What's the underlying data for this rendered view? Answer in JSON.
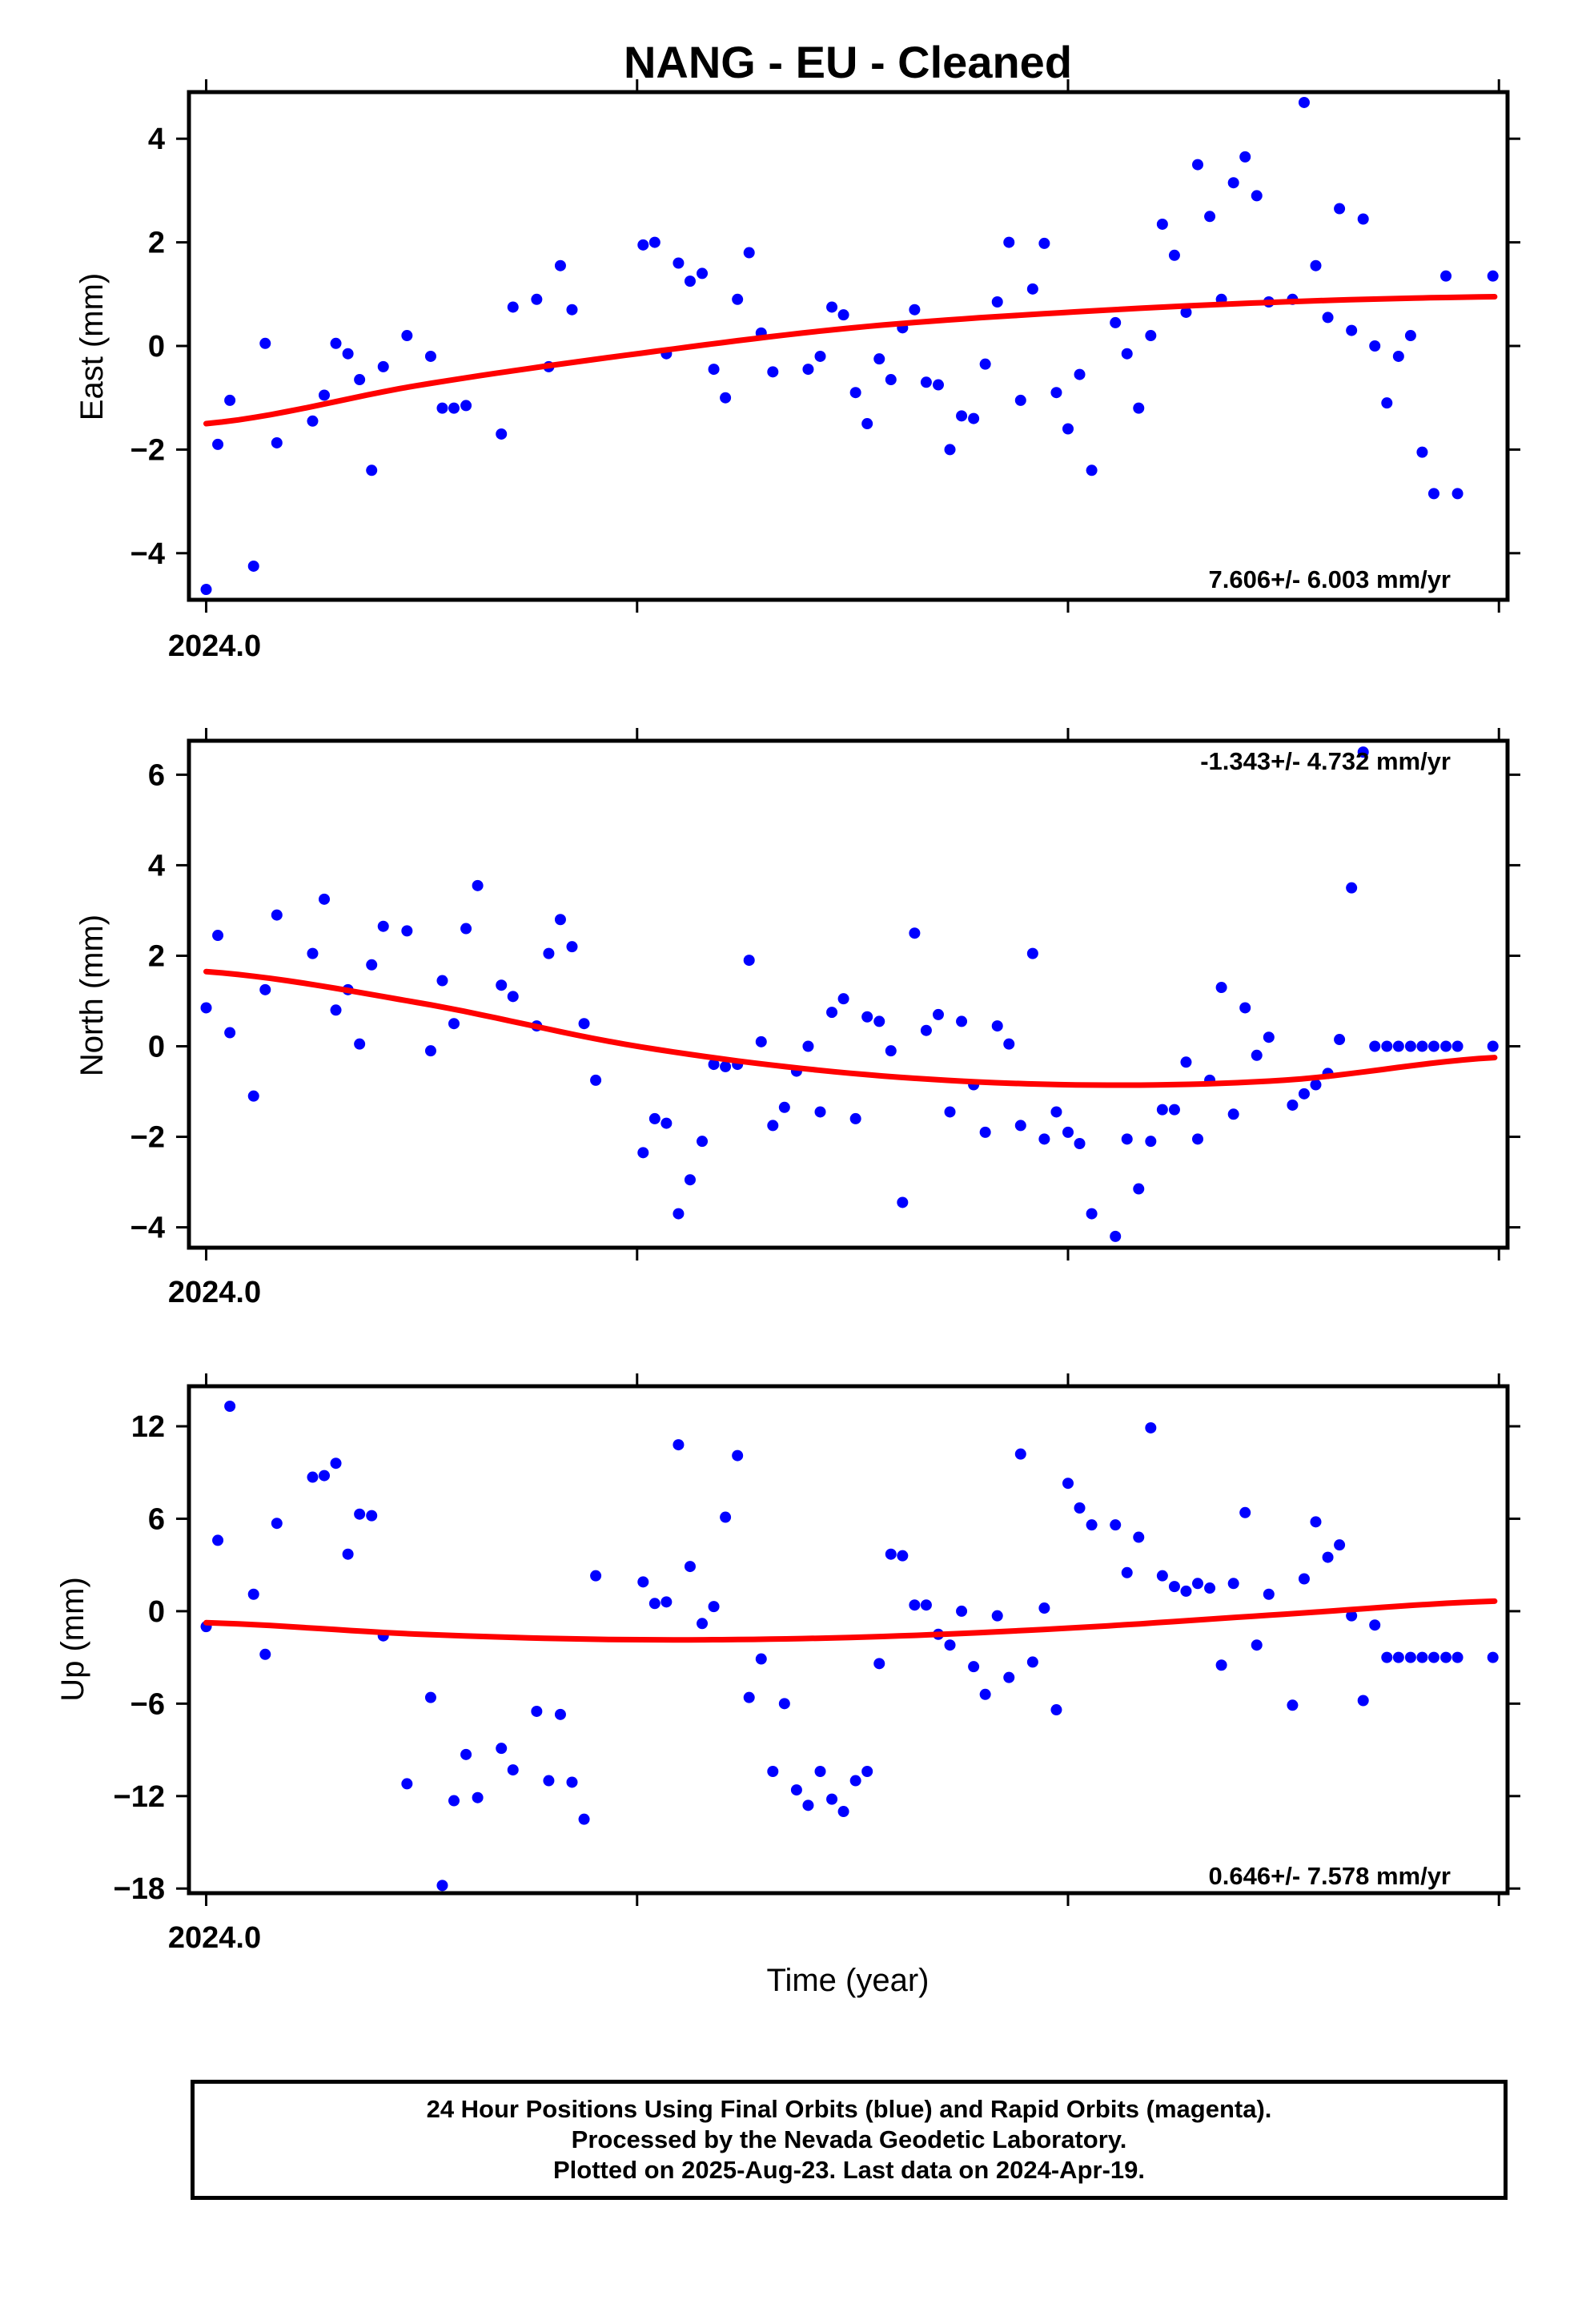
{
  "title": "NANG  - EU - Cleaned",
  "xlabel": "Time (year)",
  "x_tick_label": "2024.0",
  "footer": {
    "line1": "24 Hour Positions Using Final Orbits (blue) and Rapid Orbits (magenta).",
    "line2": "Processed by the Nevada Geodetic Laboratory.",
    "line3": "Plotted on 2025-Aug-23. Last data on 2024-Apr-19."
  },
  "colors": {
    "points": "#0000ff",
    "fit": "#ff0000",
    "axes": "#000000"
  },
  "chart_data": [
    {
      "type": "scatter",
      "ylabel": "East (mm)",
      "rate_label": "7.606+/- 6.003 mm/yr",
      "rate_position": "bottom-right",
      "xlim": [
        2023.996,
        2024.302
      ],
      "ylim": [
        -4.9,
        4.9
      ],
      "yticks": [
        -4,
        -2,
        0,
        2,
        4
      ],
      "y_tick_labels": [
        "−4",
        "−2",
        "0",
        "2",
        "4"
      ],
      "x_major_ticks": [
        2024.0,
        2024.1,
        2024.2,
        2024.3
      ],
      "x_tick_labels": [
        "2024.0",
        "",
        "",
        ""
      ],
      "x": [
        2024.0,
        2024.0027,
        2024.0055,
        2024.011,
        2024.0137,
        2024.0164,
        2024.0247,
        2024.0274,
        2024.0301,
        2024.0329,
        2024.0356,
        2024.0384,
        2024.0411,
        2024.0466,
        2024.0521,
        2024.0548,
        2024.0575,
        2024.0603,
        2024.0685,
        2024.0712,
        2024.0767,
        2024.0795,
        2024.0822,
        2024.0849,
        2024.1014,
        2024.1041,
        2024.1068,
        2024.1096,
        2024.1123,
        2024.1151,
        2024.1178,
        2024.1205,
        2024.1233,
        2024.126,
        2024.1288,
        2024.1315,
        2024.1397,
        2024.1425,
        2024.1452,
        2024.1479,
        2024.1507,
        2024.1534,
        2024.1562,
        2024.1589,
        2024.1616,
        2024.1644,
        2024.1671,
        2024.1699,
        2024.1726,
        2024.1753,
        2024.1781,
        2024.1808,
        2024.1836,
        2024.1863,
        2024.189,
        2024.1918,
        2024.1945,
        2024.1973,
        2024.2,
        2024.2027,
        2024.2055,
        2024.211,
        2024.2137,
        2024.2164,
        2024.2192,
        2024.2219,
        2024.2247,
        2024.2274,
        2024.2301,
        2024.2329,
        2024.2356,
        2024.2384,
        2024.2411,
        2024.2438,
        2024.2466,
        2024.2521,
        2024.2548,
        2024.2575,
        2024.2603,
        2024.263,
        2024.2658,
        2024.2685,
        2024.2712,
        2024.274,
        2024.2767,
        2024.2795,
        2024.2822,
        2024.2849,
        2024.2877,
        2024.2904,
        2024.2986
      ],
      "y": [
        -4.7,
        -1.9,
        -1.05,
        -4.25,
        0.05,
        -1.87,
        -1.45,
        -0.95,
        0.05,
        -0.15,
        -0.65,
        -2.4,
        -0.4,
        0.2,
        -0.2,
        -1.2,
        -1.2,
        -1.15,
        -1.7,
        0.75,
        0.9,
        -0.4,
        1.55,
        0.7,
        1.95,
        2.0,
        -0.15,
        1.6,
        1.25,
        1.4,
        -0.45,
        -1.0,
        0.9,
        1.8,
        0.25,
        -0.5,
        -0.45,
        -0.2,
        0.75,
        0.6,
        -0.9,
        -1.5,
        -0.25,
        -0.65,
        0.35,
        0.7,
        -0.7,
        -0.75,
        -2.0,
        -1.35,
        -1.4,
        -0.35,
        0.85,
        2.0,
        -1.05,
        1.1,
        1.98,
        -0.9,
        -1.6,
        -0.55,
        -2.4,
        0.45,
        -0.15,
        -1.2,
        0.2,
        2.35,
        1.75,
        0.65,
        3.5,
        2.5,
        0.9,
        3.15,
        3.65,
        2.9,
        0.85,
        0.9,
        4.7,
        1.55,
        0.55,
        2.65,
        0.3,
        2.45,
        0.0,
        -1.1,
        -0.2,
        0.2,
        -2.05,
        -2.85,
        1.35,
        -2.85,
        1.35
      ],
      "fit": {
        "x": [
          2024.0,
          2024.05,
          2024.1,
          2024.15,
          2024.2,
          2024.25,
          2024.299
        ],
        "y": [
          -1.5,
          -0.75,
          -0.15,
          0.35,
          0.65,
          0.85,
          0.95
        ]
      }
    },
    {
      "type": "scatter",
      "ylabel": "North (mm)",
      "rate_label": "-1.343+/- 4.732 mm/yr",
      "rate_position": "top-right",
      "xlim": [
        2023.996,
        2024.302
      ],
      "ylim": [
        -4.45,
        6.75
      ],
      "yticks": [
        -4,
        -2,
        0,
        2,
        4,
        6
      ],
      "y_tick_labels": [
        "−4",
        "−2",
        "0",
        "2",
        "4",
        "6"
      ],
      "x_major_ticks": [
        2024.0,
        2024.1,
        2024.2,
        2024.3
      ],
      "x_tick_labels": [
        "2024.0",
        "",
        "",
        ""
      ],
      "x": [
        2024.0,
        2024.0027,
        2024.0055,
        2024.011,
        2024.0137,
        2024.0164,
        2024.0247,
        2024.0274,
        2024.0301,
        2024.0329,
        2024.0356,
        2024.0384,
        2024.0411,
        2024.0466,
        2024.0521,
        2024.0548,
        2024.0575,
        2024.0603,
        2024.063,
        2024.0685,
        2024.0712,
        2024.0767,
        2024.0795,
        2024.0822,
        2024.0849,
        2024.0877,
        2024.0904,
        2024.1014,
        2024.1041,
        2024.1068,
        2024.1096,
        2024.1123,
        2024.1151,
        2024.1178,
        2024.1205,
        2024.1233,
        2024.126,
        2024.1288,
        2024.1315,
        2024.1342,
        2024.137,
        2024.1397,
        2024.1425,
        2024.1452,
        2024.1479,
        2024.1507,
        2024.1534,
        2024.1562,
        2024.1589,
        2024.1616,
        2024.1644,
        2024.1671,
        2024.1699,
        2024.1726,
        2024.1753,
        2024.1781,
        2024.1808,
        2024.1836,
        2024.1863,
        2024.189,
        2024.1918,
        2024.1945,
        2024.1973,
        2024.2,
        2024.2027,
        2024.2055,
        2024.211,
        2024.2137,
        2024.2164,
        2024.2192,
        2024.2219,
        2024.2247,
        2024.2274,
        2024.2301,
        2024.2329,
        2024.2356,
        2024.2384,
        2024.2411,
        2024.2438,
        2024.2466,
        2024.2521,
        2024.2548,
        2024.2575,
        2024.2603,
        2024.263,
        2024.2658,
        2024.2685,
        2024.2712,
        2024.274,
        2024.2767,
        2024.2795,
        2024.2822,
        2024.2849,
        2024.2877,
        2024.2904,
        2024.2986
      ],
      "y": [
        0.85,
        2.45,
        0.3,
        -1.1,
        1.25,
        2.9,
        2.05,
        3.25,
        0.8,
        1.25,
        0.05,
        1.8,
        2.65,
        2.55,
        -0.1,
        1.45,
        0.5,
        2.6,
        3.55,
        1.35,
        1.1,
        0.45,
        2.05,
        2.8,
        2.2,
        0.5,
        -0.75,
        -2.35,
        -1.6,
        -1.7,
        -3.7,
        -2.95,
        -2.1,
        -0.4,
        -0.45,
        -0.4,
        1.9,
        0.1,
        -1.75,
        -1.35,
        -0.55,
        0.0,
        -1.45,
        0.75,
        1.05,
        -1.6,
        0.65,
        0.55,
        -0.1,
        -3.45,
        2.5,
        0.35,
        0.7,
        -1.45,
        0.55,
        -0.85,
        -1.9,
        0.45,
        0.05,
        -1.75,
        2.05,
        -2.05,
        -1.45,
        -1.9,
        -2.15,
        -3.7,
        -4.2,
        -2.05,
        -3.15,
        -2.1,
        -1.4,
        -1.4,
        -0.35,
        -2.05,
        -0.75,
        1.3,
        -1.5,
        0.85,
        -0.2,
        0.2,
        -1.3,
        -1.05,
        -0.85,
        -0.6,
        0.15,
        3.5,
        6.5,
        0.0,
        0.0,
        0.0,
        0.0,
        0.0,
        0.0,
        0.0,
        0.0,
        0.0
      ],
      "fit": {
        "x": [
          2024.0,
          2024.05,
          2024.1,
          2024.15,
          2024.2,
          2024.25,
          2024.299
        ],
        "y": [
          1.65,
          0.95,
          0.0,
          -0.6,
          -0.85,
          -0.75,
          -0.25
        ]
      }
    },
    {
      "type": "scatter",
      "ylabel": "Up (mm)",
      "rate_label": "0.646+/- 7.578 mm/yr",
      "rate_position": "bottom-right",
      "xlim": [
        2023.996,
        2024.302
      ],
      "ylim": [
        -18.3,
        14.6
      ],
      "yticks": [
        -18,
        -12,
        -6,
        0,
        6,
        12
      ],
      "y_tick_labels": [
        "−18",
        "−12",
        "−6",
        "0",
        "6",
        "12"
      ],
      "x_major_ticks": [
        2024.0,
        2024.1,
        2024.2,
        2024.3
      ],
      "x_tick_labels": [
        "2024.0",
        "",
        "",
        ""
      ],
      "x": [
        2024.0,
        2024.0027,
        2024.0055,
        2024.011,
        2024.0137,
        2024.0164,
        2024.0247,
        2024.0274,
        2024.0301,
        2024.0329,
        2024.0356,
        2024.0384,
        2024.0411,
        2024.0466,
        2024.0521,
        2024.0548,
        2024.0575,
        2024.0603,
        2024.063,
        2024.0685,
        2024.0712,
        2024.0767,
        2024.0795,
        2024.0822,
        2024.0849,
        2024.0877,
        2024.0904,
        2024.1014,
        2024.1041,
        2024.1068,
        2024.1096,
        2024.1123,
        2024.1151,
        2024.1178,
        2024.1205,
        2024.1233,
        2024.126,
        2024.1288,
        2024.1315,
        2024.1342,
        2024.137,
        2024.1397,
        2024.1425,
        2024.1452,
        2024.1479,
        2024.1507,
        2024.1534,
        2024.1562,
        2024.1589,
        2024.1616,
        2024.1644,
        2024.1671,
        2024.1699,
        2024.1726,
        2024.1753,
        2024.1781,
        2024.1808,
        2024.1836,
        2024.1863,
        2024.189,
        2024.1918,
        2024.1945,
        2024.1973,
        2024.2,
        2024.2027,
        2024.2055,
        2024.211,
        2024.2137,
        2024.2164,
        2024.2192,
        2024.2219,
        2024.2247,
        2024.2274,
        2024.2301,
        2024.2329,
        2024.2356,
        2024.2384,
        2024.2411,
        2024.2438,
        2024.2466,
        2024.2521,
        2024.2548,
        2024.2575,
        2024.2603,
        2024.263,
        2024.2658,
        2024.2685,
        2024.2712,
        2024.274,
        2024.2767,
        2024.2795,
        2024.2822,
        2024.2849,
        2024.2877,
        2024.2904,
        2024.2986
      ],
      "y": [
        -1.0,
        4.6,
        13.3,
        1.1,
        -2.8,
        5.7,
        8.7,
        8.8,
        9.6,
        3.7,
        6.3,
        6.2,
        -1.6,
        -11.2,
        -5.6,
        -17.8,
        -12.3,
        -9.3,
        -12.1,
        -8.9,
        -10.3,
        -6.5,
        -11.0,
        -6.7,
        -11.1,
        -13.5,
        2.3,
        1.9,
        0.5,
        0.6,
        10.8,
        2.9,
        -0.8,
        0.3,
        6.1,
        10.1,
        -5.6,
        -3.1,
        -10.4,
        -6.0,
        -11.6,
        -12.6,
        -10.4,
        -12.2,
        -13.0,
        -11.0,
        -10.4,
        -3.4,
        3.7,
        3.6,
        0.4,
        0.4,
        -1.5,
        -2.2,
        0.0,
        -3.6,
        -5.4,
        -0.3,
        -4.3,
        10.2,
        -3.3,
        0.2,
        -6.4,
        8.3,
        6.7,
        5.6,
        5.6,
        2.5,
        4.8,
        11.9,
        2.3,
        1.6,
        1.3,
        1.8,
        1.5,
        -3.5,
        1.8,
        6.4,
        -2.2,
        1.1,
        -6.1,
        2.1,
        5.8,
        3.5,
        4.3,
        -0.3,
        -5.8,
        -0.9,
        -3.0,
        -3.0,
        -3.0,
        -3.0,
        -3.0,
        -3.0,
        -3.0,
        -3.0
      ],
      "fit": {
        "x": [
          2024.0,
          2024.05,
          2024.1,
          2024.15,
          2024.2,
          2024.25,
          2024.299
        ],
        "y": [
          -0.75,
          -1.5,
          -1.85,
          -1.7,
          -1.1,
          -0.2,
          0.65
        ]
      }
    }
  ]
}
